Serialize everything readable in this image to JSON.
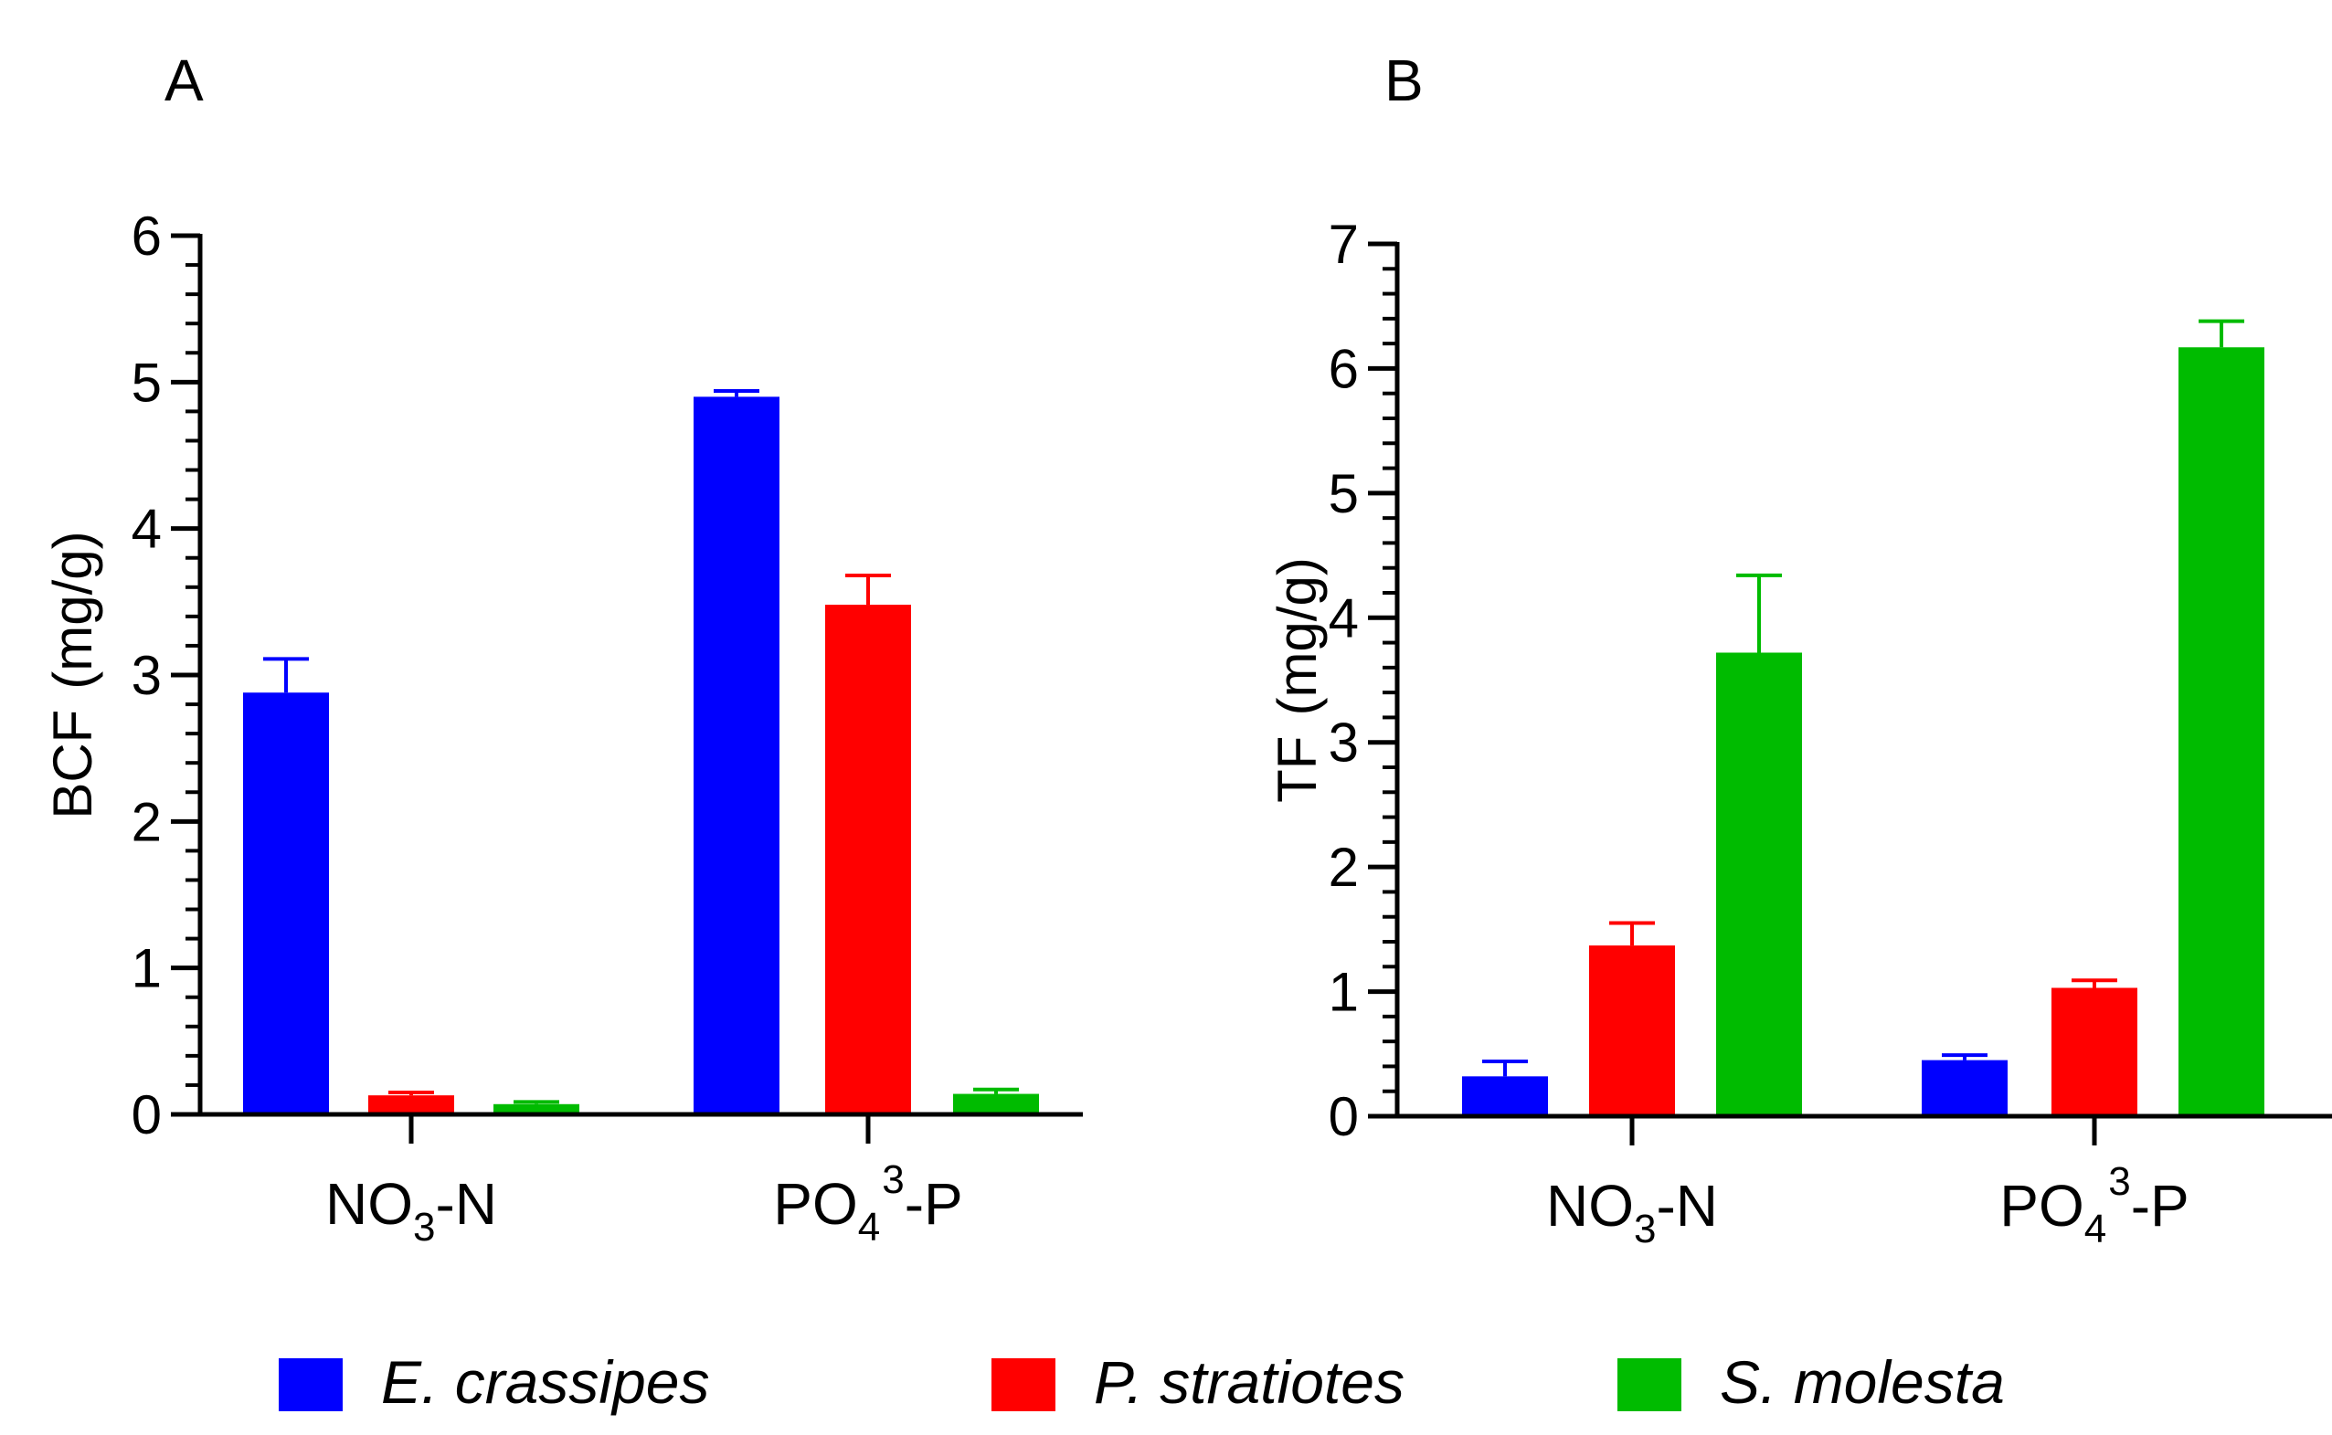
{
  "chart_data": [
    {
      "type": "bar",
      "panel": "A",
      "categories": [
        "NO3-N",
        "PO43-P"
      ],
      "category_labels": [
        {
          "main": "NO",
          "sub": "3",
          "sup": "",
          "rest": "-N"
        },
        {
          "main": "PO",
          "sub": "4",
          "sup": "3",
          "rest": "-P"
        }
      ],
      "ylabel_parts": [
        "BCF",
        "(mg/g)"
      ],
      "ylim": [
        0,
        6
      ],
      "yticks": [
        0,
        1,
        2,
        3,
        4,
        5,
        6
      ],
      "series": [
        {
          "name": "E. crassipes",
          "values": [
            2.88,
            4.9
          ],
          "errors": [
            0.23,
            0.04
          ]
        },
        {
          "name": "P. stratiotes",
          "values": [
            0.13,
            3.48
          ],
          "errors": [
            0.02,
            0.2
          ]
        },
        {
          "name": "S. molesta",
          "values": [
            0.07,
            0.14
          ],
          "errors": [
            0.015,
            0.03
          ]
        }
      ]
    },
    {
      "type": "bar",
      "panel": "B",
      "categories": [
        "NO3-N",
        "PO43-P"
      ],
      "category_labels": [
        {
          "main": "NO",
          "sub": "3",
          "sup": "",
          "rest": "-N"
        },
        {
          "main": "PO",
          "sub": "4",
          "sup": "3",
          "rest": "-P"
        }
      ],
      "ylabel_parts": [
        "TF",
        "(mg/g)"
      ],
      "ylim": [
        0,
        7
      ],
      "yticks": [
        0,
        1,
        2,
        3,
        4,
        5,
        6,
        7
      ],
      "series": [
        {
          "name": "E. crassipes",
          "values": [
            0.32,
            0.45
          ],
          "errors": [
            0.12,
            0.04
          ]
        },
        {
          "name": "P. stratiotes",
          "values": [
            1.37,
            1.03
          ],
          "errors": [
            0.18,
            0.06
          ]
        },
        {
          "name": "S. molesta",
          "values": [
            3.72,
            6.17
          ],
          "errors": [
            0.62,
            0.21
          ]
        }
      ]
    }
  ],
  "legend": {
    "position": "bottom",
    "items": [
      {
        "label": "E. crassipes",
        "color": "#0000FF"
      },
      {
        "label": "P. stratiotes",
        "color": "#FF0000"
      },
      {
        "label": "S. molesta",
        "color": "#00BB00"
      }
    ]
  }
}
